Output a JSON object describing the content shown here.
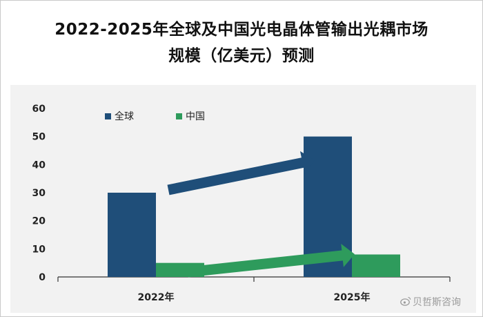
{
  "chart_data": {
    "type": "bar",
    "title": "2022-2025年全球及中国光电晶体管输出光耦市场规模（亿美元）预测",
    "title_lines": [
      "2022-2025年全球及中国光电晶体管输出光耦市场",
      "规模（亿美元）预测"
    ],
    "categories": [
      "2022年",
      "2025年"
    ],
    "series": [
      {
        "name": "全球",
        "values": [
          30,
          50
        ],
        "color": "#1f4e79"
      },
      {
        "name": "中国",
        "values": [
          5,
          8
        ],
        "color": "#2e9b5c"
      }
    ],
    "ylim": [
      0,
      60
    ],
    "yticks": [
      "0",
      "10",
      "20",
      "30",
      "40",
      "50",
      "60"
    ],
    "grid": false,
    "legend": "top-left",
    "annotations": [
      {
        "type": "arrow",
        "series": "全球",
        "color": "#1f4e79"
      },
      {
        "type": "arrow",
        "series": "中国",
        "color": "#2e9b5c"
      }
    ]
  },
  "watermark": {
    "text": "贝哲斯咨询",
    "icon": "weibo-icon"
  }
}
